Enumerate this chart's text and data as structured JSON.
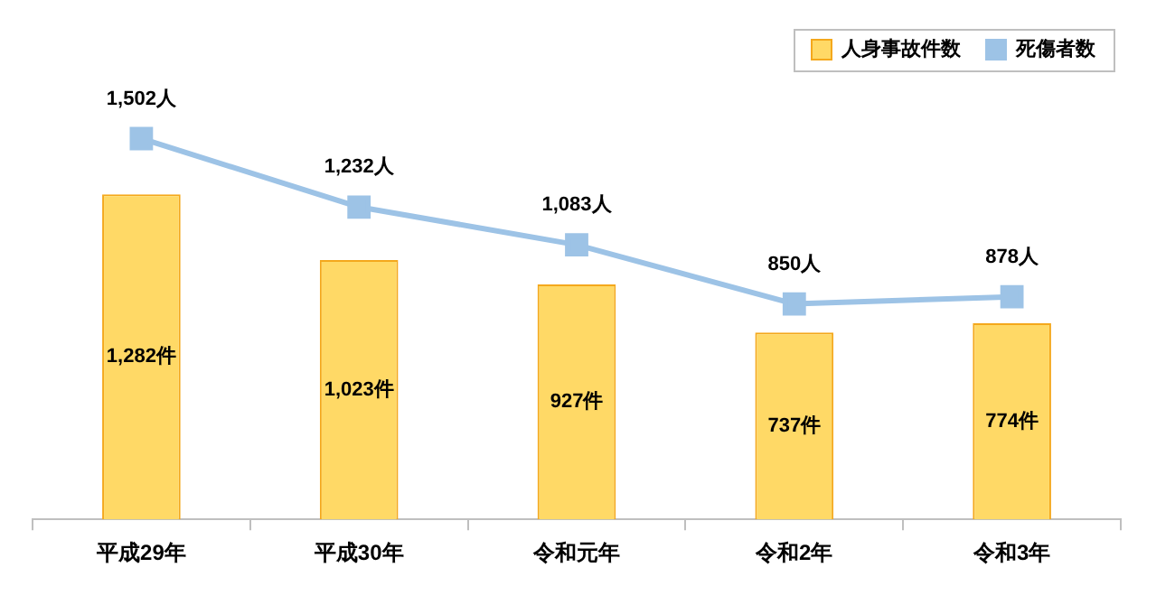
{
  "chart_data": {
    "type": "bar",
    "categories": [
      "平成29年",
      "平成30年",
      "令和元年",
      "令和2年",
      "令和3年"
    ],
    "series": [
      {
        "name": "人身事故件数",
        "color": "#ffd966",
        "values": [
          1282,
          1023,
          927,
          737,
          774
        ],
        "value_labels": [
          "1,282件",
          "1,023件",
          "927件",
          "737件",
          "774件"
        ]
      },
      {
        "name": "死傷者数",
        "type": "line",
        "color": "#9dc3e6",
        "values": [
          1502,
          1232,
          1083,
          850,
          878
        ],
        "value_labels": [
          "1,502人",
          "1,232人",
          "1,083人",
          "850人",
          "878人"
        ]
      }
    ],
    "legend": "top right",
    "marker": "square"
  }
}
